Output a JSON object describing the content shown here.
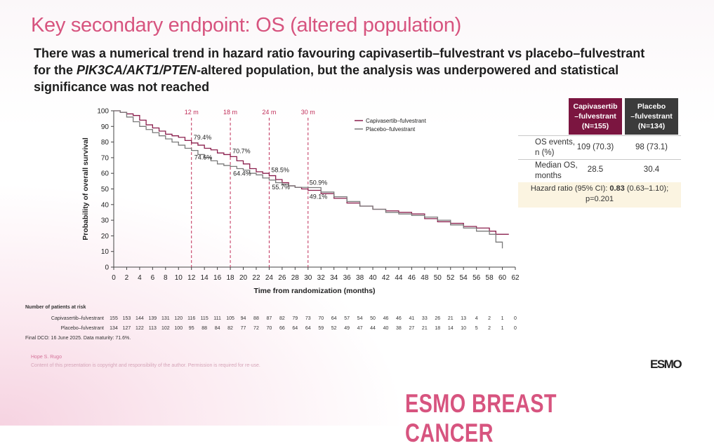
{
  "slide": {
    "title": "Key secondary endpoint: OS (altered population)",
    "subtitle_line1": "There was a numerical trend in hazard ratio favouring capivasertib–fulvestrant vs placebo–fulvestrant",
    "subtitle_line2_pre": "for the ",
    "subtitle_line2_ital": "PIK3CA/AKT1/PTEN",
    "subtitle_line2_post": "-altered population, but the analysis was underpowered and statistical",
    "subtitle_line3": "significance was not reached"
  },
  "table": {
    "cap_header": [
      "Capivasertib",
      "–fulvestrant",
      "(N=155)"
    ],
    "pla_header": [
      "Placebo",
      "–fulvestrant",
      "(N=134)"
    ],
    "row1_label": [
      "OS events,",
      "n (%)"
    ],
    "row1_cap": "109 (70.3)",
    "row1_pla": "98 (73.1)",
    "row2_label": [
      "Median OS,",
      "months"
    ],
    "row2_cap": "28.5",
    "row2_pla": "30.4",
    "hr_pre": "Hazard ratio (95% CI): ",
    "hr_bold": "0.83",
    "hr_post": " (0.63–1.10);",
    "hr_p": "p=0.201"
  },
  "risk_table": {
    "title": "Number of patients at risk",
    "rows": [
      {
        "label": "Capivasertib–fulvestrant",
        "values": [
          "155",
          "153",
          "144",
          "139",
          "131",
          "120",
          "116",
          "115",
          "111",
          "105",
          "94",
          "88",
          "87",
          "82",
          "79",
          "73",
          "70",
          "64",
          "57",
          "54",
          "50",
          "46",
          "46",
          "41",
          "33",
          "26",
          "21",
          "13",
          "4",
          "2",
          "1",
          "0"
        ]
      },
      {
        "label": "Placebo–fulvestrant",
        "values": [
          "134",
          "127",
          "122",
          "113",
          "102",
          "100",
          "95",
          "88",
          "84",
          "82",
          "77",
          "72",
          "70",
          "66",
          "64",
          "64",
          "59",
          "52",
          "49",
          "47",
          "44",
          "40",
          "38",
          "27",
          "21",
          "18",
          "14",
          "10",
          "5",
          "2",
          "1",
          "0"
        ]
      }
    ],
    "footnote": "Final DCO: 16 June 2025. Data maturity: 71.6%."
  },
  "footer": {
    "presenter": "Hope S. Rugo",
    "copyright": "Content of this presentation is copyright and responsibility of the author. Permission is required for re-use.",
    "logo": "ESMO",
    "brand": "ESMO BREAST CANCER"
  },
  "colors": {
    "capi": "#8a1e4c",
    "placebo": "#7a7a7a",
    "accent": "#d7547f",
    "marker": "#c0305a"
  },
  "chart_data": {
    "type": "line",
    "xlabel": "Time from randomization (months)",
    "ylabel": "Probability of overall survival",
    "xlim": [
      0,
      62
    ],
    "ylim": [
      0,
      100
    ],
    "xticks": [
      0,
      2,
      4,
      6,
      8,
      10,
      12,
      14,
      16,
      18,
      20,
      22,
      24,
      26,
      28,
      30,
      32,
      34,
      36,
      38,
      40,
      42,
      44,
      46,
      48,
      50,
      52,
      54,
      56,
      58,
      60,
      62
    ],
    "yticks": [
      0,
      10,
      20,
      30,
      40,
      50,
      60,
      70,
      80,
      90,
      100
    ],
    "legend_position": "top-right",
    "landmarks": [
      {
        "label": "12 m",
        "x": 12
      },
      {
        "label": "18 m",
        "x": 18
      },
      {
        "label": "24 m",
        "x": 24
      },
      {
        "label": "30 m",
        "x": 30
      }
    ],
    "annotations": [
      {
        "text": "79.4%",
        "x": 12,
        "y": 79.4,
        "series": "Capivasertib–fulvestrant"
      },
      {
        "text": "74.6%",
        "x": 12,
        "y": 74.6,
        "series": "Placebo–fulvestrant"
      },
      {
        "text": "70.7%",
        "x": 18,
        "y": 70.7,
        "series": "Capivasertib–fulvestrant"
      },
      {
        "text": "64.4%",
        "x": 18,
        "y": 64.4,
        "series": "Placebo–fulvestrant"
      },
      {
        "text": "58.5%",
        "x": 24,
        "y": 58.5,
        "series": "Capivasertib–fulvestrant"
      },
      {
        "text": "55.7%",
        "x": 24,
        "y": 55.7,
        "series": "Placebo–fulvestrant"
      },
      {
        "text": "50.9%",
        "x": 30,
        "y": 50.9,
        "series": "Placebo–fulvestrant"
      },
      {
        "text": "49.1%",
        "x": 30,
        "y": 49.1,
        "series": "Capivasertib–fulvestrant"
      }
    ],
    "series": [
      {
        "name": "Capivasertib–fulvestrant",
        "x": [
          0,
          1,
          2,
          3,
          4,
          5,
          6,
          7,
          8,
          9,
          10,
          11,
          12,
          13,
          14,
          15,
          16,
          17,
          18,
          19,
          20,
          21,
          22,
          23,
          24,
          25,
          26,
          27,
          28,
          29,
          30,
          32,
          34,
          36,
          38,
          40,
          42,
          44,
          46,
          48,
          50,
          52,
          54,
          56,
          58,
          59,
          60,
          61
        ],
        "y": [
          100,
          99,
          98,
          97,
          94,
          91,
          89,
          87,
          85,
          84,
          83,
          81,
          79.4,
          78,
          76,
          75,
          73,
          72,
          70.7,
          68,
          66,
          63,
          61,
          60,
          58.5,
          56,
          54,
          52,
          51,
          50,
          49.1,
          47,
          44,
          41,
          39,
          37,
          36,
          35,
          34,
          31,
          29,
          28,
          26,
          25,
          23,
          21,
          21,
          21
        ]
      },
      {
        "name": "Placebo–fulvestrant",
        "x": [
          0,
          1,
          2,
          3,
          4,
          5,
          6,
          7,
          8,
          9,
          10,
          11,
          12,
          13,
          14,
          15,
          16,
          17,
          18,
          19,
          20,
          21,
          22,
          23,
          24,
          25,
          26,
          27,
          28,
          29,
          30,
          32,
          34,
          36,
          38,
          40,
          42,
          44,
          46,
          48,
          50,
          52,
          54,
          56,
          58,
          59,
          60
        ],
        "y": [
          100,
          99,
          96,
          93,
          90,
          88,
          86,
          84,
          82,
          80,
          78,
          76,
          74.6,
          72,
          70,
          68,
          66,
          65,
          64.4,
          63,
          62,
          60,
          59,
          57,
          55.7,
          54,
          53,
          52,
          51,
          51,
          50.9,
          48,
          45,
          42,
          39,
          37,
          35,
          34,
          33,
          32,
          30,
          27,
          25,
          23,
          21,
          16,
          12
        ]
      }
    ]
  }
}
